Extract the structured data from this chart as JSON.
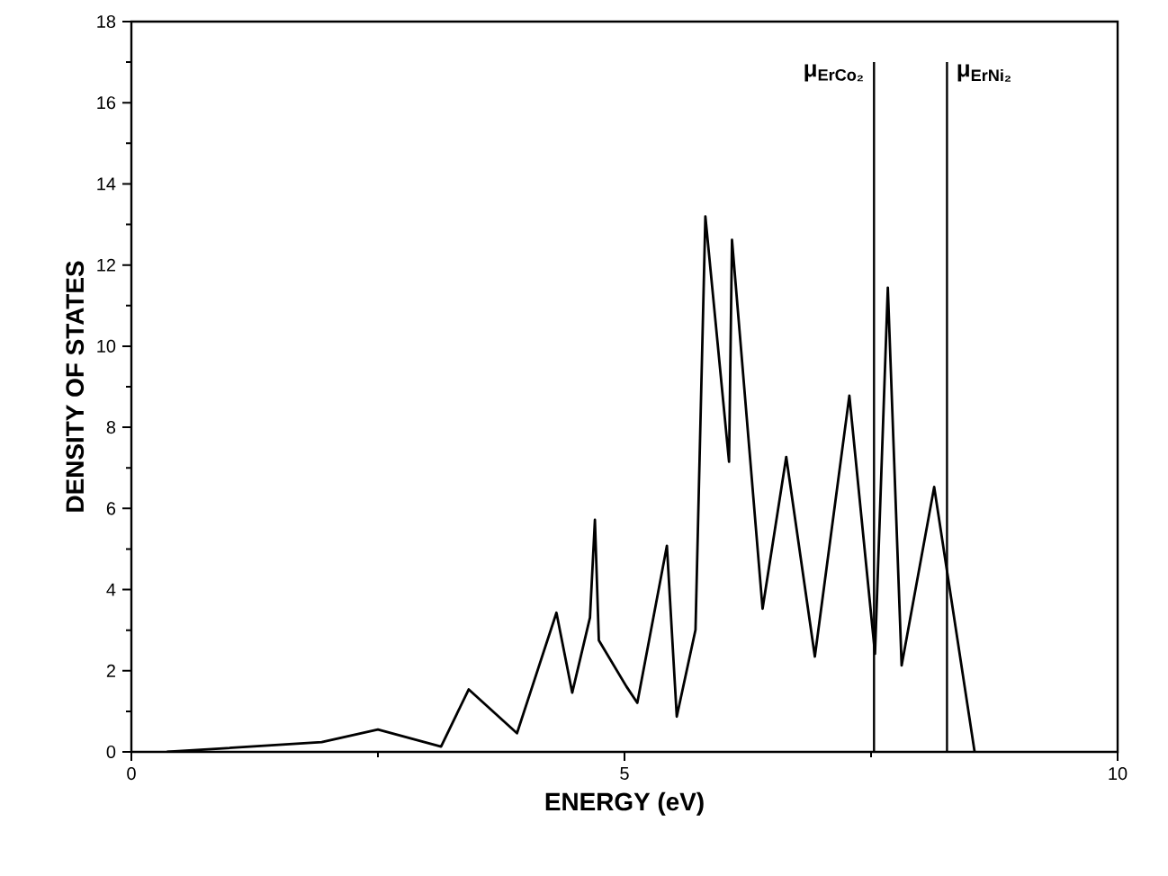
{
  "chart_data": {
    "type": "line",
    "xlabel": "ENERGY (eV)",
    "ylabel": "DENSITY OF STATES",
    "x": [
      0.36,
      1.93,
      2.5,
      3.14,
      3.42,
      3.91,
      4.31,
      4.47,
      4.65,
      4.7,
      4.74,
      5.02,
      5.13,
      5.43,
      5.53,
      5.72,
      5.82,
      6.06,
      6.09,
      6.4,
      6.64,
      6.93,
      7.28,
      7.54,
      7.67,
      7.81,
      8.14,
      8.55
    ],
    "values": [
      0,
      0.24,
      0.55,
      0.13,
      1.54,
      0.46,
      3.43,
      1.46,
      3.31,
      5.72,
      2.75,
      1.61,
      1.21,
      5.08,
      0.87,
      3.01,
      13.2,
      7.15,
      12.62,
      3.53,
      7.27,
      2.35,
      8.78,
      2.42,
      11.44,
      2.13,
      6.53,
      0
    ],
    "color": "#000000",
    "xlim": [
      0,
      10
    ],
    "xticks": [
      0,
      5,
      10
    ],
    "ylim": [
      0,
      18
    ],
    "yticks": [
      0,
      2,
      4,
      6,
      8,
      10,
      12,
      14,
      16,
      18
    ],
    "ref_lines": [
      {
        "axis": "x",
        "value": 7.53,
        "label": "μ$_{ErCo₂}$",
        "color": "#000000"
      },
      {
        "axis": "x",
        "value": 8.27,
        "label": "μ$_{ErNi₂}$",
        "color": "#000000"
      }
    ],
    "grid": false,
    "marker": "none",
    "line_style": "solid"
  }
}
